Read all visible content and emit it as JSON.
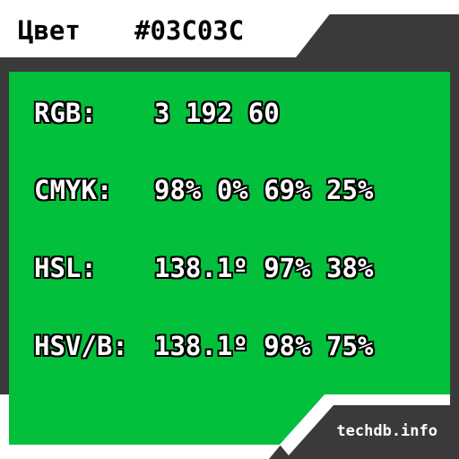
{
  "colors": {
    "swatch": "#03C03C",
    "frame": "#3a3a3a",
    "background": "#ffffff"
  },
  "header": {
    "label": "Цвет",
    "hex": "#03C03C"
  },
  "rows": [
    {
      "label": "RGB:",
      "value": "3 192 60"
    },
    {
      "label": "CMYK:",
      "value": "98% 0% 69% 25%"
    },
    {
      "label": "HSL:",
      "value": "138.1º 97% 38%"
    },
    {
      "label": "HSV/B:",
      "value": "138.1º 98% 75%"
    }
  ],
  "footer": {
    "site": "techdb.info"
  }
}
